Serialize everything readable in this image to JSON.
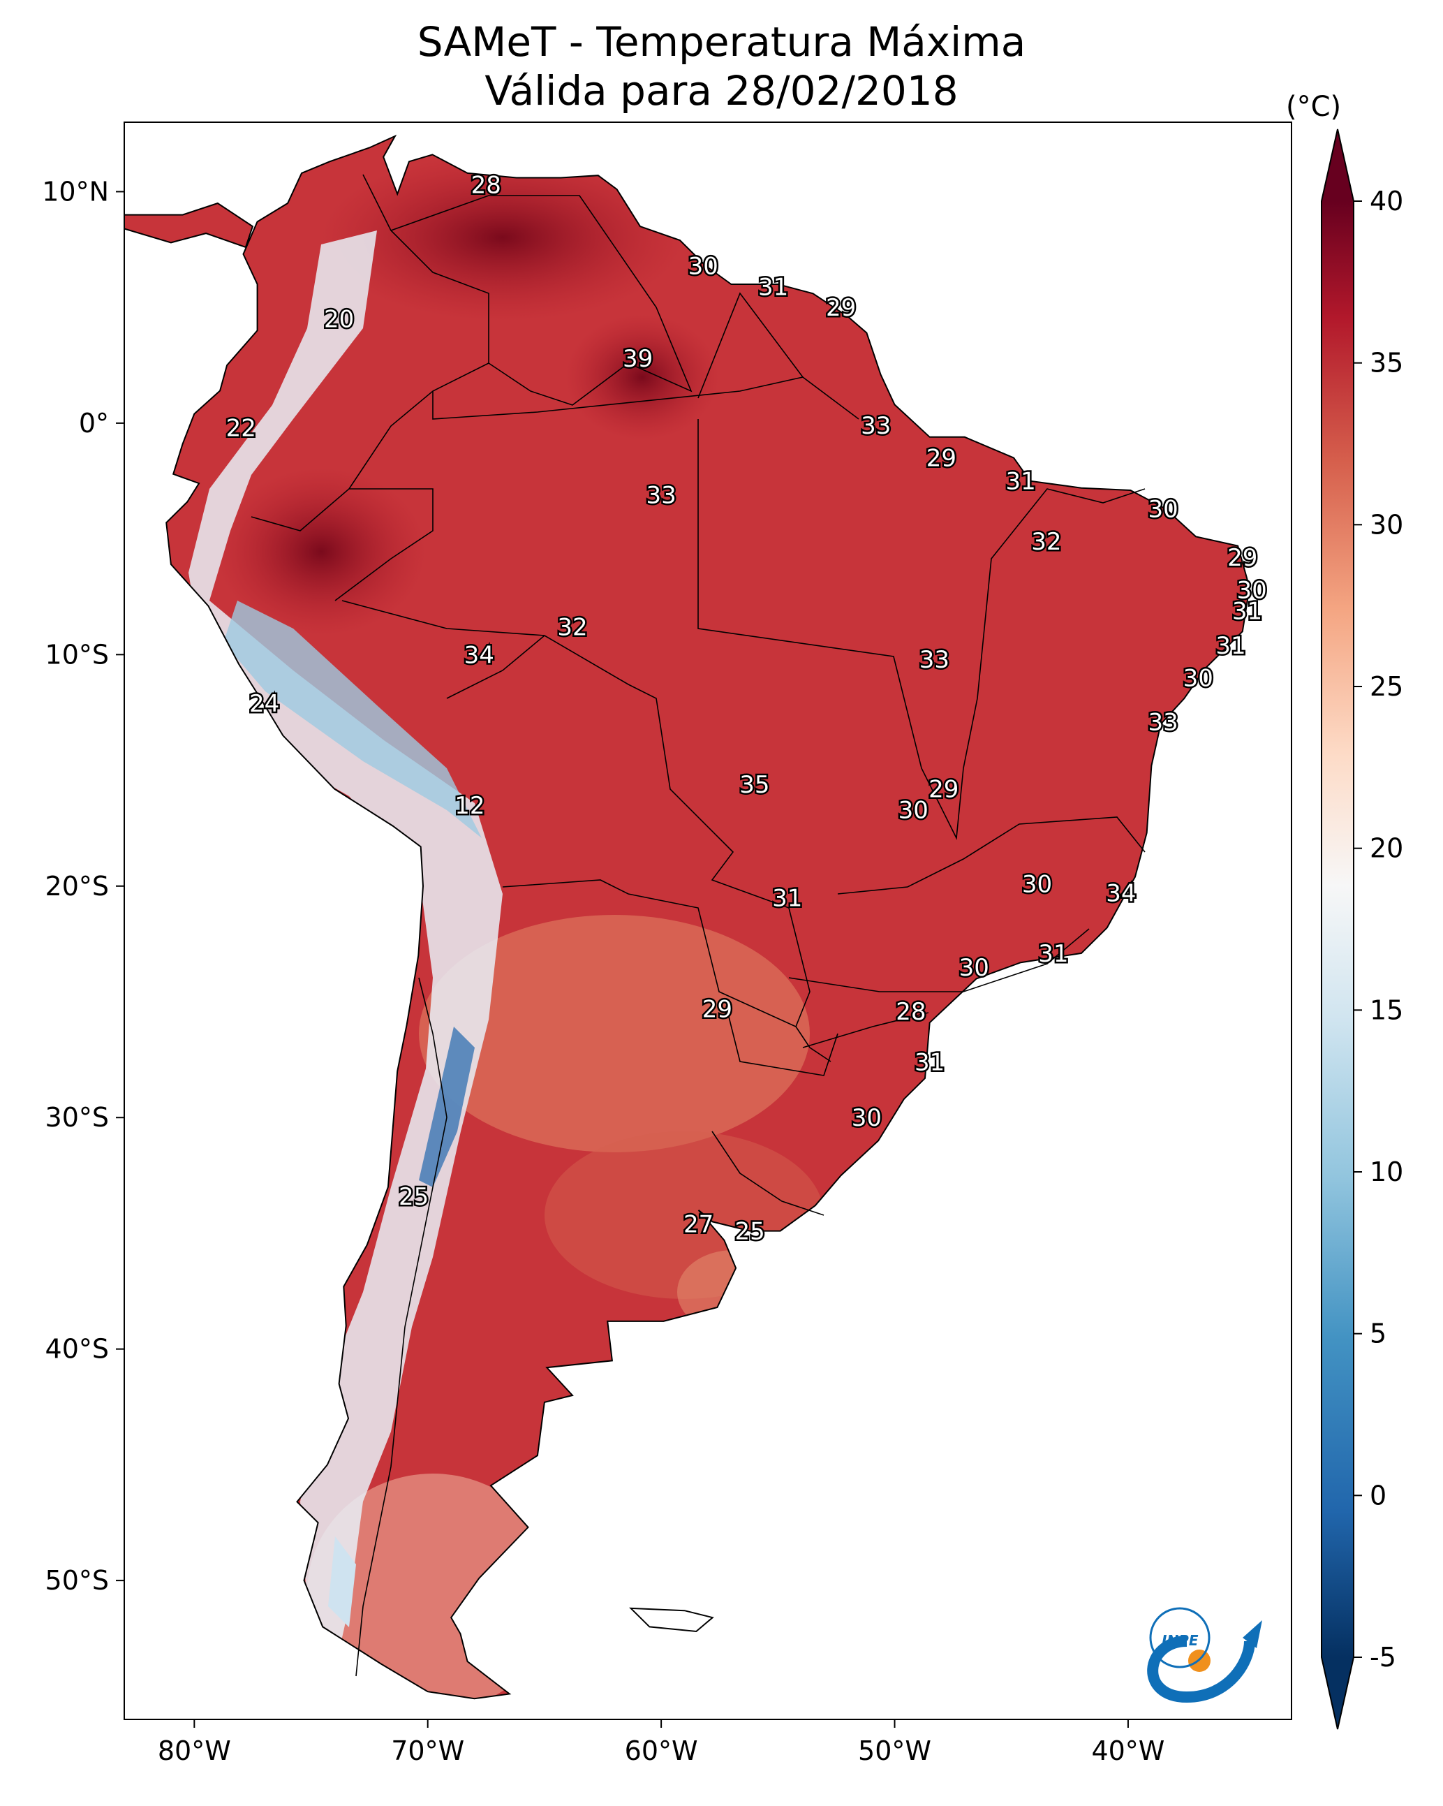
{
  "title": {
    "line1": "SAMeT - Temperatura Máxima",
    "line2": "Válida para 28/02/2018"
  },
  "map": {
    "region": "South America",
    "lon_range": [
      -83,
      -33
    ],
    "lat_range": [
      -56,
      13
    ],
    "variable": "max-temperature",
    "coastline_color": "#000000",
    "land_base_color": "#c93636",
    "ocean_color": "#ffffff",
    "x_ticks": [
      {
        "lon": -80,
        "label": "80°W"
      },
      {
        "lon": -70,
        "label": "70°W"
      },
      {
        "lon": -60,
        "label": "60°W"
      },
      {
        "lon": -50,
        "label": "50°W"
      },
      {
        "lon": -40,
        "label": "40°W"
      }
    ],
    "y_ticks": [
      {
        "lat": 10,
        "label": "10°N"
      },
      {
        "lat": 0,
        "label": "0°"
      },
      {
        "lat": -10,
        "label": "10°S"
      },
      {
        "lat": -20,
        "label": "20°S"
      },
      {
        "lat": -30,
        "label": "30°S"
      },
      {
        "lat": -40,
        "label": "40°S"
      },
      {
        "lat": -50,
        "label": "50°S"
      }
    ],
    "station_values": [
      {
        "lon": -67.5,
        "lat": 10.3,
        "value": "28"
      },
      {
        "lon": -58.2,
        "lat": 6.8,
        "value": "30"
      },
      {
        "lon": -55.2,
        "lat": 5.9,
        "value": "31"
      },
      {
        "lon": -52.3,
        "lat": 5.0,
        "value": "29"
      },
      {
        "lon": -73.8,
        "lat": 4.5,
        "value": "20"
      },
      {
        "lon": -61.0,
        "lat": 2.8,
        "value": "39"
      },
      {
        "lon": -78.0,
        "lat": -0.2,
        "value": "22"
      },
      {
        "lon": -50.8,
        "lat": -0.1,
        "value": "33"
      },
      {
        "lon": -48.0,
        "lat": -1.5,
        "value": "29"
      },
      {
        "lon": -60.0,
        "lat": -3.1,
        "value": "33"
      },
      {
        "lon": -44.6,
        "lat": -2.5,
        "value": "31"
      },
      {
        "lon": -38.5,
        "lat": -3.7,
        "value": "30"
      },
      {
        "lon": -43.5,
        "lat": -5.1,
        "value": "32"
      },
      {
        "lon": -35.1,
        "lat": -5.8,
        "value": "29"
      },
      {
        "lon": -34.7,
        "lat": -7.2,
        "value": "30"
      },
      {
        "lon": -34.9,
        "lat": -8.1,
        "value": "31"
      },
      {
        "lon": -63.8,
        "lat": -8.8,
        "value": "32"
      },
      {
        "lon": -67.8,
        "lat": -10.0,
        "value": "34"
      },
      {
        "lon": -48.3,
        "lat": -10.2,
        "value": "33"
      },
      {
        "lon": -35.6,
        "lat": -9.6,
        "value": "31"
      },
      {
        "lon": -37.0,
        "lat": -11.0,
        "value": "30"
      },
      {
        "lon": -38.5,
        "lat": -12.9,
        "value": "33"
      },
      {
        "lon": -77.0,
        "lat": -12.1,
        "value": "24"
      },
      {
        "lon": -56.0,
        "lat": -15.6,
        "value": "35"
      },
      {
        "lon": -47.9,
        "lat": -15.8,
        "value": "29"
      },
      {
        "lon": -49.2,
        "lat": -16.7,
        "value": "30"
      },
      {
        "lon": -68.2,
        "lat": -16.5,
        "value": "12"
      },
      {
        "lon": -43.9,
        "lat": -19.9,
        "value": "30"
      },
      {
        "lon": -40.3,
        "lat": -20.3,
        "value": "34"
      },
      {
        "lon": -54.6,
        "lat": -20.5,
        "value": "31"
      },
      {
        "lon": -43.2,
        "lat": -22.9,
        "value": "31"
      },
      {
        "lon": -46.6,
        "lat": -23.5,
        "value": "30"
      },
      {
        "lon": -57.6,
        "lat": -25.3,
        "value": "29"
      },
      {
        "lon": -49.3,
        "lat": -25.4,
        "value": "28"
      },
      {
        "lon": -48.5,
        "lat": -27.6,
        "value": "31"
      },
      {
        "lon": -51.2,
        "lat": -30.0,
        "value": "30"
      },
      {
        "lon": -70.6,
        "lat": -33.4,
        "value": "25"
      },
      {
        "lon": -58.4,
        "lat": -34.6,
        "value": "27"
      },
      {
        "lon": -56.2,
        "lat": -34.9,
        "value": "25"
      }
    ]
  },
  "colorbar": {
    "unit": "(°C)",
    "min": -5,
    "max": 40,
    "ticks": [
      "-5",
      "0",
      "5",
      "10",
      "15",
      "20",
      "25",
      "30",
      "35",
      "40"
    ],
    "extend": "both",
    "colors": [
      "#053061",
      "#2166ac",
      "#4393c3",
      "#92c5de",
      "#d1e5f0",
      "#f7f7f7",
      "#fddbc7",
      "#f4a582",
      "#d6604d",
      "#b2182b",
      "#67001f"
    ]
  },
  "logo": {
    "text": "INPE",
    "colors": [
      "#0f6fb8",
      "#f0901c"
    ]
  }
}
